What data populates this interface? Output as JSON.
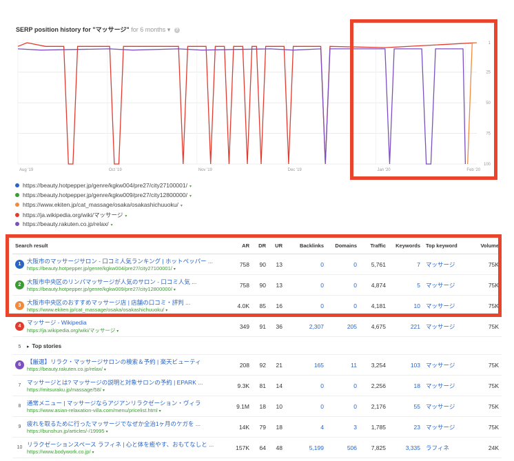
{
  "header": {
    "title": "SERP position history for \"マッサージ\"",
    "range": "for 6 months",
    "range_caret": "▾",
    "info_icon": "?"
  },
  "chart_data": {
    "type": "line",
    "title": "SERP position history for \"マッサージ\"",
    "x_ticks": [
      "Aug '19",
      "Oct '19",
      "Nov '19",
      "Dec '19",
      "Jan '20",
      "Feb '20"
    ],
    "y_ticks": [
      "1",
      "25",
      "50",
      "75",
      "100"
    ],
    "ylim": [
      1,
      100
    ],
    "y_reversed": true,
    "grid": true,
    "series": [
      {
        "name": "https://ja.wikipedia.org/wiki/マッサージ",
        "color": "#e03b2e",
        "points": [
          [
            0,
            4
          ],
          [
            0.02,
            1
          ],
          [
            0.06,
            4
          ],
          [
            0.1,
            4
          ],
          [
            0.11,
            100
          ],
          [
            0.12,
            100
          ],
          [
            0.13,
            4
          ],
          [
            0.2,
            4
          ],
          [
            0.21,
            100
          ],
          [
            0.22,
            100
          ],
          [
            0.23,
            4
          ],
          [
            0.35,
            4
          ],
          [
            0.36,
            100
          ],
          [
            0.37,
            4
          ],
          [
            0.41,
            4
          ],
          [
            0.42,
            100
          ],
          [
            0.43,
            4
          ],
          [
            0.45,
            4
          ],
          [
            0.46,
            100
          ],
          [
            0.47,
            4
          ],
          [
            0.49,
            4
          ],
          [
            0.5,
            100
          ],
          [
            0.51,
            4
          ],
          [
            0.52,
            4
          ],
          [
            0.53,
            100
          ],
          [
            0.54,
            4
          ],
          [
            0.58,
            4
          ],
          [
            0.59,
            100
          ],
          [
            0.6,
            4
          ],
          [
            0.66,
            4
          ],
          [
            0.67,
            100
          ],
          [
            0.68,
            4
          ],
          [
            0.8,
            5
          ],
          [
            1,
            1
          ]
        ]
      },
      {
        "name": "https://beauty.rakuten.co.jp/relax/",
        "color": "#7b4fc0",
        "points": [
          [
            0,
            6
          ],
          [
            0.05,
            7
          ],
          [
            0.2,
            6
          ],
          [
            0.25,
            7
          ],
          [
            0.35,
            6
          ],
          [
            0.4,
            7
          ],
          [
            0.55,
            6
          ],
          [
            0.6,
            7
          ],
          [
            0.66,
            6
          ],
          [
            0.67,
            100
          ],
          [
            0.68,
            6
          ],
          [
            0.8,
            6
          ],
          [
            0.81,
            100
          ],
          [
            0.82,
            6
          ],
          [
            0.88,
            6
          ],
          [
            0.89,
            100
          ],
          [
            0.9,
            100
          ],
          [
            0.91,
            6
          ],
          [
            0.97,
            6
          ],
          [
            0.975,
            100
          ]
        ]
      },
      {
        "name": "https://www.ekiten.jp/cat_massage/osaka/osakashichuuoku/",
        "color": "#f08a3e",
        "points": [
          [
            0.98,
            100
          ],
          [
            0.99,
            1
          ],
          [
            1,
            1
          ]
        ]
      }
    ]
  },
  "legend": [
    {
      "url": "https://beauty.hotpepper.jp/genre/kgkw004/pre27/city27100001/",
      "color": "#2a64c5"
    },
    {
      "url": "https://beauty.hotpepper.jp/genre/kgkw009/pre27/city12800000/",
      "color": "#3d9b35"
    },
    {
      "url": "https://www.ekiten.jp/cat_massage/osaka/osakashichuuoku/",
      "color": "#f08a3e"
    },
    {
      "url": "https://ja.wikipedia.org/wiki/マッサージ",
      "color": "#e03b2e"
    },
    {
      "url": "https://beauty.rakuten.co.jp/relax/",
      "color": "#7b4fc0"
    }
  ],
  "caret": "▾",
  "table": {
    "headers": [
      "Search result",
      "AR",
      "DR",
      "UR",
      "Backlinks",
      "Domains",
      "Traffic",
      "Keywords",
      "Top keyword",
      "Volume"
    ],
    "rows": [
      {
        "n": "1",
        "badge": "#2a64c5",
        "title": "大阪市のマッサージサロン - 口コミ人気ランキング | ホットペッパー ...",
        "url": "https://beauty.hotpepper.jp/genre/kgkw004/pre27/city27100001/",
        "ar": "758",
        "dr": "90",
        "ur": "13",
        "bl": "0",
        "dom": "0",
        "traffic": "5,761",
        "kw": "7",
        "top": "マッサージ",
        "vol": "75K"
      },
      {
        "n": "2",
        "badge": "#3d9b35",
        "title": "大阪市中央区のリンパマッサージが人気のサロン - 口コミ人気 ...",
        "url": "https://beauty.hotpepper.jp/genre/kgkw009/pre27/city12800000/",
        "ar": "758",
        "dr": "90",
        "ur": "13",
        "bl": "0",
        "dom": "0",
        "traffic": "4,874",
        "kw": "5",
        "top": "マッサージ",
        "vol": "75K"
      },
      {
        "n": "3",
        "badge": "#f08a3e",
        "title": "大阪市中央区のおすすめマッサージ店 | 店舗の口コミ・評判 ...",
        "url": "https://www.ekiten.jp/cat_massage/osaka/osakashichuuoku/",
        "ar": "4.0K",
        "dr": "85",
        "ur": "16",
        "bl": "0",
        "dom": "0",
        "traffic": "4,181",
        "kw": "10",
        "top": "マッサージ",
        "vol": "75K"
      },
      {
        "n": "4",
        "badge": "#e03b2e",
        "title": "マッサージ - Wikipedia",
        "url": "https://ja.wikipedia.org/wiki/マッサージ",
        "ar": "349",
        "dr": "91",
        "ur": "36",
        "bl": "2,307",
        "dom": "205",
        "traffic": "4,675",
        "kw": "221",
        "top": "マッサージ",
        "vol": "75K"
      },
      {
        "stories": true,
        "n": "5",
        "label": "Top stories",
        "arrow": "▸"
      },
      {
        "n": "6",
        "badge": "#7b4fc0",
        "title": "【厳選】リラク・マッサージサロンの検索＆予約 | 楽天ビューティ",
        "url": "https://beauty.rakuten.co.jp/relax/",
        "ar": "208",
        "dr": "92",
        "ur": "21",
        "bl": "165",
        "dom": "11",
        "traffic": "3,254",
        "kw": "103",
        "top": "マッサージ",
        "vol": "75K"
      },
      {
        "n": "7",
        "title": "マッサージとは? マッサージの説明と対象サロンの予約 | EPARK ...",
        "url": "https://mitsuraku.jp/massage/58/",
        "ar": "9.3K",
        "dr": "81",
        "ur": "14",
        "bl": "0",
        "dom": "0",
        "traffic": "2,256",
        "kw": "18",
        "top": "マッサージ",
        "vol": "75K"
      },
      {
        "n": "8",
        "title": "通常メニュー | マッサージならアジアンリラクゼーション・ヴィラ",
        "url": "https://www.asian-relaxation-villa.com/menu/pricelist.html",
        "ar": "9.1M",
        "dr": "18",
        "ur": "10",
        "bl": "0",
        "dom": "0",
        "traffic": "2,176",
        "kw": "55",
        "top": "マッサージ",
        "vol": "75K"
      },
      {
        "n": "9",
        "title": "疲れを取るために行ったマッサージでなぜか全治1ヶ月のケガを ...",
        "url": "https://bunshun.jp/articles/-/19995",
        "ar": "14K",
        "dr": "79",
        "ur": "18",
        "bl": "4",
        "dom": "3",
        "traffic": "1,785",
        "kw": "23",
        "top": "マッサージ",
        "vol": "75K"
      },
      {
        "n": "10",
        "title": "リラクゼーションスペース ラフィネ | 心と体を癒やす、おもてなしと ...",
        "url": "https://www.bodywork.co.jp/",
        "ar": "157K",
        "dr": "64",
        "ur": "48",
        "bl": "5,199",
        "dom": "506",
        "traffic": "7,825",
        "kw": "3,335",
        "top": "ラフィネ",
        "vol": "24K"
      }
    ]
  }
}
